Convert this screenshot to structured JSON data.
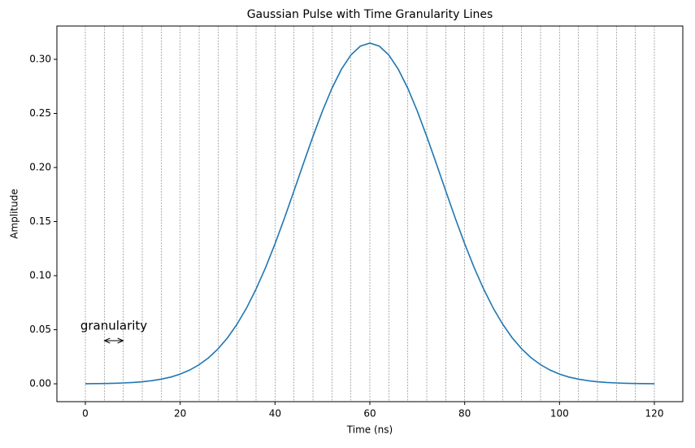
{
  "chart_data": {
    "type": "line",
    "title": "Gaussian Pulse with Time Granularity Lines",
    "x_label": "Time (ns)",
    "y_label": "Amplitude",
    "annotation": "granularity",
    "x": [
      0,
      2,
      4,
      6,
      8,
      10,
      12,
      14,
      16,
      18,
      20,
      22,
      24,
      26,
      28,
      30,
      32,
      34,
      36,
      38,
      40,
      42,
      44,
      46,
      48,
      50,
      52,
      54,
      56,
      58,
      60,
      62,
      64,
      66,
      68,
      70,
      72,
      74,
      76,
      78,
      80,
      82,
      84,
      86,
      88,
      90,
      92,
      94,
      96,
      98,
      100,
      102,
      104,
      106,
      108,
      110,
      112,
      114,
      116,
      118,
      120
    ],
    "series": [
      {
        "name": "Gaussian pulse",
        "color": "#1f77b4",
        "values": [
          0.0001,
          0.0002,
          0.0003,
          0.0005,
          0.0008,
          0.0012,
          0.0019,
          0.0029,
          0.0043,
          0.0062,
          0.009,
          0.0127,
          0.0177,
          0.0241,
          0.0324,
          0.0426,
          0.0552,
          0.0701,
          0.0876,
          0.1074,
          0.1295,
          0.1533,
          0.1784,
          0.2038,
          0.2287,
          0.2522,
          0.2732,
          0.2908,
          0.304,
          0.3122,
          0.315,
          0.3122,
          0.304,
          0.2908,
          0.2732,
          0.2522,
          0.2287,
          0.2038,
          0.1784,
          0.1533,
          0.1295,
          0.1074,
          0.0876,
          0.0701,
          0.0552,
          0.0426,
          0.0324,
          0.0241,
          0.0177,
          0.0127,
          0.009,
          0.0062,
          0.0043,
          0.0029,
          0.0019,
          0.0012,
          0.0008,
          0.0005,
          0.0003,
          0.0002,
          0.0001
        ]
      }
    ],
    "granularity_lines": [
      0,
      4,
      8,
      12,
      16,
      20,
      24,
      28,
      32,
      36,
      40,
      44,
      48,
      52,
      56,
      60,
      64,
      68,
      72,
      76,
      80,
      84,
      88,
      92,
      96,
      100,
      104,
      108,
      112,
      116,
      120
    ],
    "xlim": [
      -6,
      126
    ],
    "ylim": [
      -0.0165,
      0.3308
    ],
    "xticks": [
      0,
      20,
      40,
      60,
      80,
      100,
      120
    ],
    "yticks": [
      {
        "value": 0,
        "label": "0.00"
      },
      {
        "value": 0.05,
        "label": "0.05"
      },
      {
        "value": 0.1,
        "label": "0.10"
      },
      {
        "value": 0.15,
        "label": "0.15"
      },
      {
        "value": 0.2,
        "label": "0.20"
      },
      {
        "value": 0.25,
        "label": "0.25"
      },
      {
        "value": 0.3,
        "label": "0.30"
      }
    ]
  }
}
